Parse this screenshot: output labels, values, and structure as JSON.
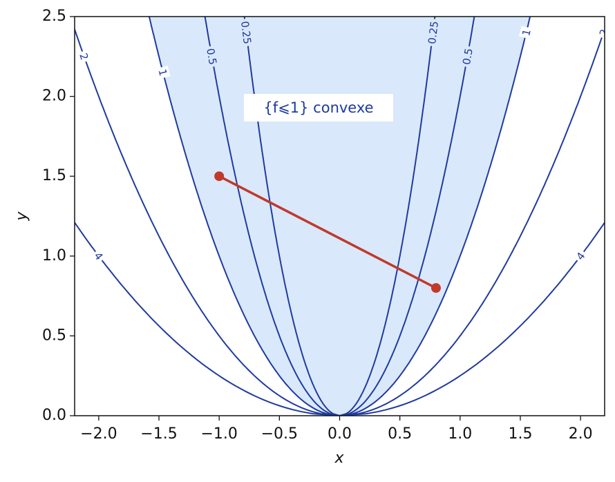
{
  "chart_data": {
    "type": "contour",
    "xlabel": "x",
    "ylabel": "y",
    "xlim": [
      -2.2,
      2.2
    ],
    "ylim": [
      0,
      2.5
    ],
    "xticks": [
      {
        "value": -2,
        "label": "−2.0"
      },
      {
        "value": -1.5,
        "label": "−1.5"
      },
      {
        "value": -1,
        "label": "−1.0"
      },
      {
        "value": -0.5,
        "label": "−0.5"
      },
      {
        "value": 0,
        "label": "0.0"
      },
      {
        "value": 0.5,
        "label": "0.5"
      },
      {
        "value": 1,
        "label": "1.0"
      },
      {
        "value": 1.5,
        "label": "1.5"
      },
      {
        "value": 2,
        "label": "2.0"
      }
    ],
    "yticks": [
      {
        "value": 0,
        "label": "0.0"
      },
      {
        "value": 0.5,
        "label": "0.5"
      },
      {
        "value": 1,
        "label": "1.0"
      },
      {
        "value": 1.5,
        "label": "1.5"
      },
      {
        "value": 2,
        "label": "2.0"
      },
      {
        "value": 2.5,
        "label": "2.5"
      }
    ],
    "levels": [
      0.25,
      0.5,
      1,
      2,
      4
    ],
    "level_color": "#1f3a9e",
    "fill_level": 1,
    "fill_color": "#d9e8fb",
    "annotation": "{f⩽1} convexe",
    "series": [
      {
        "x": [
          -1,
          0.8
        ],
        "values": [
          1.5,
          0.8
        ],
        "color": "#c0392b"
      }
    ]
  }
}
